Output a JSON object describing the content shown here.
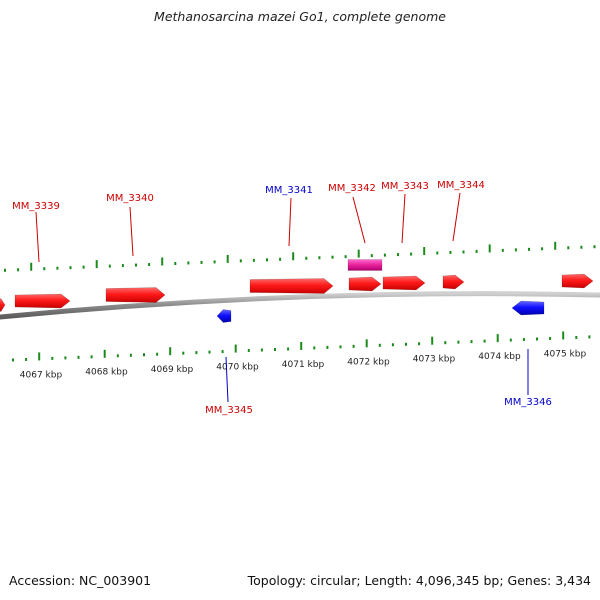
{
  "title": "Methanosarcina mazei Go1, complete genome",
  "footer": {
    "accession": "Accession: NC_003901",
    "summary": "Topology: circular; Length: 4,096,345 bp; Genes: 3,434"
  },
  "colors": {
    "forward_gene": "#ff2020",
    "reverse_gene": "#1a1aff",
    "pink_gene": "#e8209a",
    "forward_label": "#cc0000",
    "reverse_label": "#0000cc",
    "tick": "#1a8a1a",
    "backbone": "#8c8c8c"
  },
  "axis": {
    "ticks": [
      {
        "label": "4067 kbp",
        "kbp": 4067
      },
      {
        "label": "4068 kbp",
        "kbp": 4068
      },
      {
        "label": "4069 kbp",
        "kbp": 4069
      },
      {
        "label": "4070 kbp",
        "kbp": 4070
      },
      {
        "label": "4071 kbp",
        "kbp": 4071
      },
      {
        "label": "4072 kbp",
        "kbp": 4072
      },
      {
        "label": "4073 kbp",
        "kbp": 4073
      },
      {
        "label": "4074 kbp",
        "kbp": 4074
      },
      {
        "label": "4075 kbp",
        "kbp": 4075
      }
    ]
  },
  "labels": [
    {
      "name": "MM_3339",
      "strand": "+"
    },
    {
      "name": "MM_3340",
      "strand": "+"
    },
    {
      "name": "MM_3341",
      "strand": "-"
    },
    {
      "name": "MM_3342",
      "strand": "+"
    },
    {
      "name": "MM_3343",
      "strand": "+"
    },
    {
      "name": "MM_3344",
      "strand": "+"
    },
    {
      "name": "MM_3345",
      "strand": "+"
    },
    {
      "name": "MM_3346",
      "strand": "-"
    }
  ]
}
